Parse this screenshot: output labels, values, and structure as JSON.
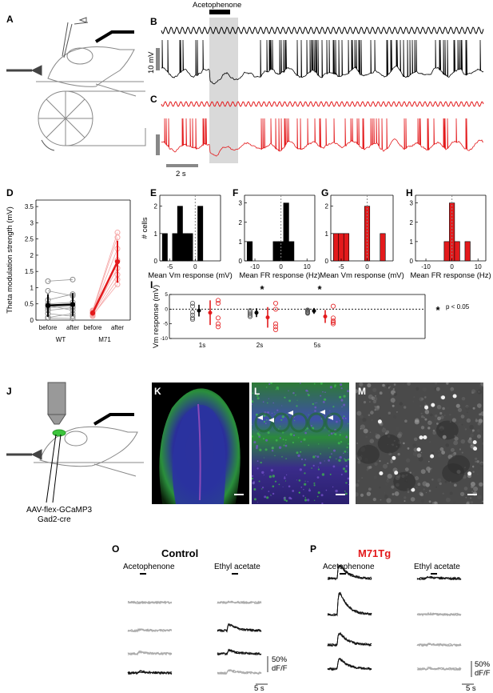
{
  "panel_labels": {
    "A": "A",
    "B": "B",
    "C": "C",
    "D": "D",
    "E": "E",
    "F": "F",
    "G": "G",
    "H": "H",
    "I": "I",
    "J": "J",
    "K": "K",
    "L": "L",
    "M": "M",
    "O": "O",
    "P": "P"
  },
  "traces": {
    "stimulus_label": "Acetophenone",
    "voltage_scale": "10 mV",
    "time_scale": "2 s"
  },
  "colors": {
    "wt": "#000000",
    "m71": "#e31a1c",
    "m71_light": "#f5a5a5",
    "stim_band": "#d9d9d9",
    "gcamp": "#2fbf3a",
    "dapi": "#5b3fb5",
    "micrograph": "#4a4a4a"
  },
  "chart_data": [
    {
      "id": "D",
      "type": "line",
      "ylabel": "Theta modulation strength (mV)",
      "ylim": [
        0,
        3.7
      ],
      "yticks": [
        0,
        0.5,
        1,
        1.5,
        2,
        2.5,
        3,
        3.5
      ],
      "x_ticks": [
        "before",
        "after",
        "before",
        "after"
      ],
      "groups": [
        "WT",
        "M71"
      ],
      "wt_mean": [
        0.45,
        0.48
      ],
      "wt_sd": [
        0.35,
        0.35
      ],
      "m71_mean": [
        0.22,
        1.8
      ],
      "m71_sd": [
        0.08,
        0.65
      ],
      "wt_individual": [
        [
          0.08,
          0.2
        ],
        [
          0.2,
          0.12
        ],
        [
          0.3,
          0.38
        ],
        [
          0.38,
          0.42
        ],
        [
          0.45,
          0.3
        ],
        [
          0.5,
          0.55
        ],
        [
          0.62,
          0.8
        ],
        [
          0.9,
          0.75
        ],
        [
          1.2,
          1.25
        ],
        [
          0.06,
          0.05
        ]
      ],
      "m71_individual": [
        [
          0.15,
          1.1
        ],
        [
          0.18,
          1.4
        ],
        [
          0.2,
          1.6
        ],
        [
          0.22,
          1.85
        ],
        [
          0.25,
          2.2
        ],
        [
          0.28,
          2.55
        ],
        [
          0.3,
          2.7
        ],
        [
          0.12,
          1.25
        ]
      ]
    },
    {
      "id": "E",
      "type": "bar",
      "xlabel": "Mean Vm response (mV)",
      "ylabel": "# cells",
      "xlim": [
        -7,
        5
      ],
      "ylim": [
        0,
        2.4
      ],
      "xticks": [
        -5,
        0
      ],
      "yticks": [
        0,
        1,
        2
      ],
      "bins": [
        [
          -6.5,
          -5.5,
          1
        ],
        [
          -5.5,
          -4.5,
          0
        ],
        [
          -4.5,
          -3.5,
          1
        ],
        [
          -3.5,
          -2.5,
          2
        ],
        [
          -2.5,
          -1.5,
          1
        ],
        [
          -1.5,
          -0.5,
          1
        ],
        [
          -0.5,
          0.5,
          0
        ],
        [
          0.5,
          1.5,
          2
        ]
      ],
      "color": "#000000"
    },
    {
      "id": "F",
      "type": "bar",
      "xlabel": "Mean FR response (Hz)",
      "xlim": [
        -14,
        13
      ],
      "ylim": [
        0,
        3.4
      ],
      "xticks": [
        -10,
        0,
        10
      ],
      "yticks": [
        0,
        1,
        2,
        3
      ],
      "bins": [
        [
          -13,
          -11,
          1
        ],
        [
          -3,
          -1,
          1
        ],
        [
          -1,
          1,
          1
        ],
        [
          1,
          3,
          3
        ],
        [
          3,
          5,
          1
        ]
      ],
      "color": "#000000"
    },
    {
      "id": "G",
      "type": "bar",
      "xlabel": "Mean Vm response (mV)",
      "xlim": [
        -7,
        5
      ],
      "ylim": [
        0,
        2.4
      ],
      "xticks": [
        -5,
        0
      ],
      "yticks": [
        0,
        1,
        2
      ],
      "bins": [
        [
          -6.5,
          -5.5,
          1
        ],
        [
          -5.5,
          -4.5,
          1
        ],
        [
          -4.5,
          -3.5,
          1
        ],
        [
          -0.5,
          0.5,
          2
        ],
        [
          2.5,
          3.5,
          1
        ]
      ],
      "color": "#e31a1c"
    },
    {
      "id": "H",
      "type": "bar",
      "xlabel": "Mean FR response (Hz)",
      "xlim": [
        -14,
        13
      ],
      "ylim": [
        0,
        3.4
      ],
      "xticks": [
        -10,
        0,
        10
      ],
      "yticks": [
        0,
        1,
        2,
        3
      ],
      "bins": [
        [
          -3,
          -1,
          1
        ],
        [
          -1,
          1,
          3
        ],
        [
          1,
          3,
          1
        ],
        [
          3,
          5,
          0
        ],
        [
          5,
          7,
          1
        ]
      ],
      "color": "#e31a1c"
    },
    {
      "id": "I",
      "type": "scatter",
      "ylabel": "Vm response (mV)",
      "ylim": [
        -10,
        5
      ],
      "yticks": [
        -10,
        -5,
        0,
        5
      ],
      "categories": [
        "1s",
        "2s",
        "5s"
      ],
      "significance_note": "p < 0.05",
      "significant": [
        false,
        true,
        true
      ],
      "wt": {
        "mean": [
          -0.5,
          -1.2,
          -0.6
        ],
        "sd": [
          2.0,
          1.5,
          1.0
        ],
        "points": [
          [
            2,
            1,
            -1,
            -2,
            -3,
            -3.5
          ],
          [
            -0.5,
            -1,
            -1.5,
            -2,
            -2.5,
            -2.5
          ],
          [
            -0.3,
            -0.5,
            -0.8,
            -1,
            -1.2,
            -1.4
          ]
        ]
      },
      "m71": {
        "mean": [
          -1.2,
          -2.8,
          -2.5
        ],
        "sd": [
          4.2,
          3.5,
          2.2
        ],
        "points": [
          [
            3,
            2,
            -3,
            -5,
            -6
          ],
          [
            2,
            0,
            -5,
            -6,
            -7
          ],
          [
            1,
            -3,
            -4,
            -4.5,
            -5
          ]
        ]
      }
    }
  ],
  "schematic_J": {
    "virus_line1": "AAV-flex-GCaMP3",
    "virus_line2": "Gad2-cre"
  },
  "imaging": {
    "control_title": "Control",
    "m71_title": "M71Tg",
    "odor1": "Acetophenone",
    "odor2": "Ethyl acetate",
    "scale_pct": "50%",
    "scale_unit": "dF/F",
    "scale_time": "5 s",
    "control_acet_peaks": [
      0.0,
      0.05,
      0.1,
      0.1
    ],
    "control_ethyl_peaks": [
      0.05,
      0.35,
      0.2,
      0.15
    ],
    "m71_acet_peaks": [
      0.8,
      1.3,
      0.7,
      0.6
    ],
    "m71_ethyl_peaks": [
      0.08,
      0.05,
      0.05,
      0.05
    ]
  }
}
